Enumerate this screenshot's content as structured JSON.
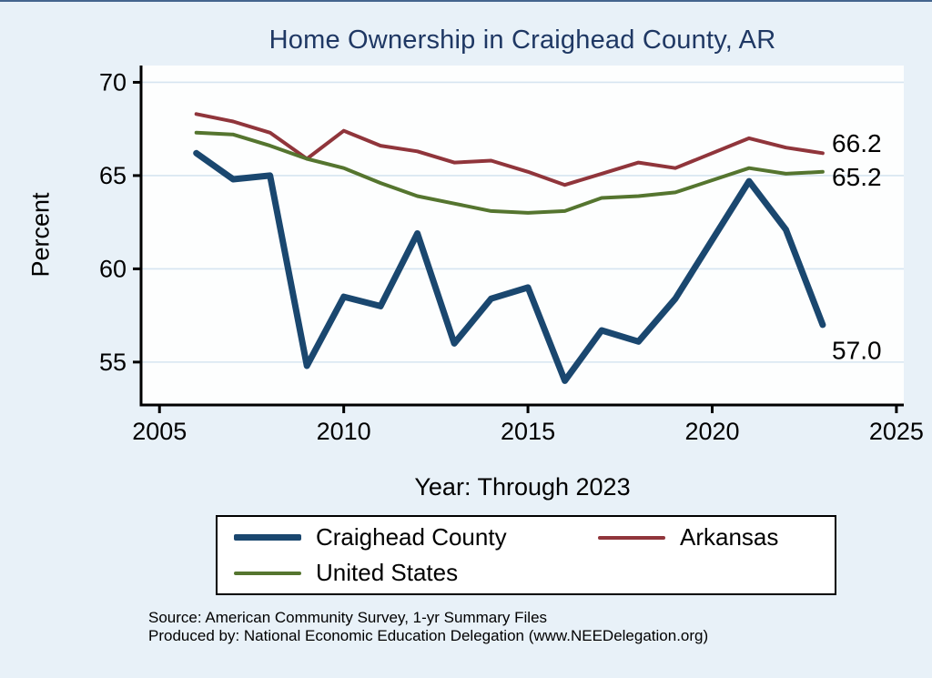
{
  "window": {
    "background": "#e8f1f8",
    "plot_background": "#fdfefe"
  },
  "chart_data": {
    "type": "line",
    "title": "Home Ownership in Craighead County, AR",
    "title_color": "#1f3864",
    "xlabel": "Year: Through 2023",
    "ylabel": "Percent",
    "xlim": [
      2004.5,
      2025.2
    ],
    "ylim": [
      52.7,
      70.9
    ],
    "xticks": [
      2005,
      2010,
      2015,
      2020,
      2025
    ],
    "yticks": [
      55,
      60,
      65,
      70
    ],
    "grid": "horizontal-y",
    "gridline_color": "#d6e5f1",
    "axis_color": "#000000",
    "legend_position": "bottom",
    "series": [
      {
        "name": "Craighead County",
        "color": "#1a476f",
        "line_width": 7,
        "points": [
          [
            2006,
            66.2
          ],
          [
            2007,
            64.8
          ],
          [
            2008,
            65.0
          ],
          [
            2009,
            54.8
          ],
          [
            2010,
            58.5
          ],
          [
            2011,
            58.0
          ],
          [
            2012,
            61.9
          ],
          [
            2013,
            56.0
          ],
          [
            2014,
            58.4
          ],
          [
            2015,
            59.0
          ],
          [
            2016,
            54.0
          ],
          [
            2017,
            56.7
          ],
          [
            2018,
            56.1
          ],
          [
            2019,
            58.4
          ],
          [
            2021,
            64.7
          ],
          [
            2022,
            62.1
          ],
          [
            2023,
            57.0
          ]
        ]
      },
      {
        "name": "Arkansas",
        "color": "#90353b",
        "line_width": 4,
        "points": [
          [
            2006,
            68.3
          ],
          [
            2007,
            67.9
          ],
          [
            2008,
            67.3
          ],
          [
            2009,
            65.9
          ],
          [
            2010,
            67.4
          ],
          [
            2011,
            66.6
          ],
          [
            2012,
            66.3
          ],
          [
            2013,
            65.7
          ],
          [
            2014,
            65.8
          ],
          [
            2015,
            65.2
          ],
          [
            2016,
            64.5
          ],
          [
            2017,
            65.1
          ],
          [
            2018,
            65.7
          ],
          [
            2019,
            65.4
          ],
          [
            2021,
            67.0
          ],
          [
            2022,
            66.5
          ],
          [
            2023,
            66.2
          ]
        ]
      },
      {
        "name": "United States",
        "color": "#55752f",
        "line_width": 4,
        "points": [
          [
            2006,
            67.3
          ],
          [
            2007,
            67.2
          ],
          [
            2008,
            66.6
          ],
          [
            2009,
            65.9
          ],
          [
            2010,
            65.4
          ],
          [
            2011,
            64.6
          ],
          [
            2012,
            63.9
          ],
          [
            2013,
            63.5
          ],
          [
            2014,
            63.1
          ],
          [
            2015,
            63.0
          ],
          [
            2016,
            63.1
          ],
          [
            2017,
            63.8
          ],
          [
            2018,
            63.9
          ],
          [
            2019,
            64.1
          ],
          [
            2021,
            65.4
          ],
          [
            2022,
            65.1
          ],
          [
            2023,
            65.2
          ]
        ]
      }
    ],
    "end_labels": [
      {
        "text": "66.2",
        "x": 2023.25,
        "y": 66.7
      },
      {
        "text": "65.2",
        "x": 2023.25,
        "y": 64.9
      },
      {
        "text": "57.0",
        "x": 2023.25,
        "y": 55.6
      }
    ]
  },
  "source": {
    "line1": "Source: American Community Survey, 1-yr Summary Files",
    "line2": "Produced by: National Economic Education Delegation (www.NEEDelegation.org)"
  }
}
